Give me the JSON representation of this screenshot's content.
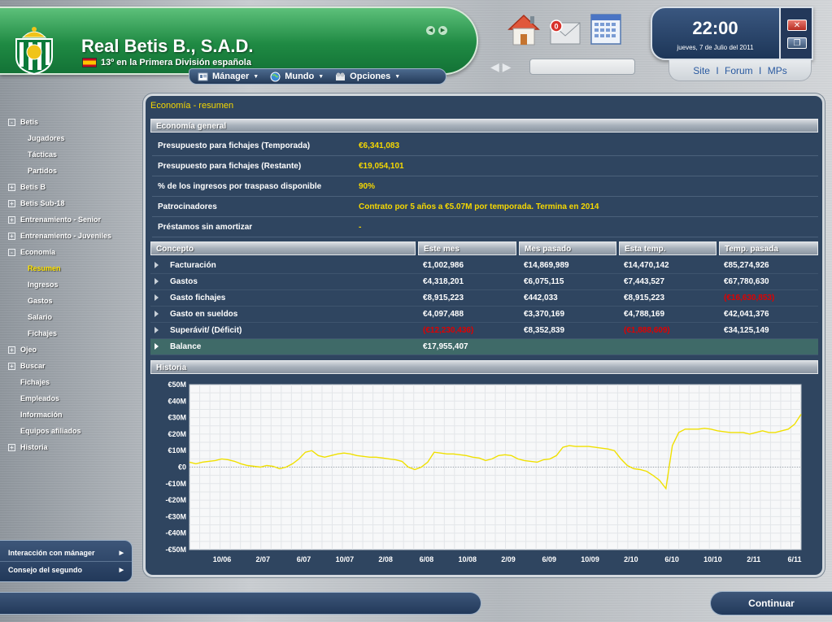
{
  "header": {
    "club_name": "Real Betis B., S.A.D.",
    "league_position": "13º en la Primera División española",
    "menu": [
      {
        "label": "Mánager",
        "icon": "manager-icon"
      },
      {
        "label": "Mundo",
        "icon": "globe-icon"
      },
      {
        "label": "Opciones",
        "icon": "options-icon"
      }
    ],
    "search": {
      "value": "",
      "placeholder": ""
    },
    "clock": {
      "time": "22:00",
      "date": "jueves, 7 de Julio del 2011"
    },
    "links": [
      "Site",
      "Forum",
      "MPs"
    ],
    "unread_messages": "0",
    "colors": {
      "banner_green": "#1f8a43",
      "panel_blue": "#2f4560",
      "accent_yellow": "#f6d800",
      "negative_red": "#e00000"
    }
  },
  "sidebar": {
    "items": [
      {
        "label": "Betis",
        "toggle": "-",
        "level": 1
      },
      {
        "label": "Jugadores",
        "level": 2
      },
      {
        "label": "Tácticas",
        "level": 2
      },
      {
        "label": "Partidos",
        "level": 2
      },
      {
        "label": "Betis B",
        "toggle": "+",
        "level": 1
      },
      {
        "label": "Betis Sub-18",
        "toggle": "+",
        "level": 1
      },
      {
        "label": "Entrenamiento - Senior",
        "toggle": "+",
        "level": 1
      },
      {
        "label": "Entrenamiento - Juveniles",
        "toggle": "+",
        "level": 1
      },
      {
        "label": "Economía",
        "toggle": "-",
        "level": 1
      },
      {
        "label": "Resumen",
        "level": 2,
        "active": true
      },
      {
        "label": "Ingresos",
        "level": 2
      },
      {
        "label": "Gastos",
        "level": 2
      },
      {
        "label": "Salario",
        "level": 2
      },
      {
        "label": "Fichajes",
        "level": 2
      },
      {
        "label": "Ojeo",
        "toggle": "+",
        "level": 1
      },
      {
        "label": "Buscar",
        "toggle": "+",
        "level": 1
      },
      {
        "label": "Fichajes",
        "level": 1
      },
      {
        "label": "Empleados",
        "level": 1
      },
      {
        "label": "Información",
        "level": 1
      },
      {
        "label": "Equipos afiliados",
        "level": 1
      },
      {
        "label": "Historia",
        "toggle": "+",
        "level": 1
      }
    ],
    "bottom": [
      "Interacción con mánager",
      "Consejo del segundo"
    ]
  },
  "main": {
    "title": "Economía - resumen",
    "general_header": "Economía general",
    "general": [
      {
        "label": "Presupuesto para fichajes (Temporada)",
        "value": "€6,341,083"
      },
      {
        "label": "Presupuesto para fichajes (Restante)",
        "value": "€19,054,101"
      },
      {
        "label": "% de los ingresos por traspaso disponible",
        "value": "90%"
      },
      {
        "label": "Patrocinadores",
        "value": "Contrato por 5 años a €5.07M por temporada. Termina en 2014"
      },
      {
        "label": "Préstamos sin amortizar",
        "value": "-"
      }
    ],
    "table": {
      "columns": [
        "Concepto",
        "Este mes",
        "Mes pasado",
        "Esta temp.",
        "Temp. pasada"
      ],
      "rows": [
        {
          "label": "Facturación",
          "cells": [
            "€1,002,986",
            "€14,869,989",
            "€14,470,142",
            "€85,274,926"
          ],
          "neg": [
            false,
            false,
            false,
            false
          ]
        },
        {
          "label": "Gastos",
          "cells": [
            "€4,318,201",
            "€6,075,115",
            "€7,443,527",
            "€67,780,630"
          ],
          "neg": [
            false,
            false,
            false,
            false
          ]
        },
        {
          "label": "Gasto fichajes",
          "cells": [
            "€8,915,223",
            "€442,033",
            "€8,915,223",
            "(€16,630,853)"
          ],
          "neg": [
            false,
            false,
            false,
            true
          ]
        },
        {
          "label": "Gasto en sueldos",
          "cells": [
            "€4,097,488",
            "€3,370,169",
            "€4,788,169",
            "€42,041,376"
          ],
          "neg": [
            false,
            false,
            false,
            false
          ]
        },
        {
          "label": "Superávit/ (Déficit)",
          "cells": [
            "(€12,230,436)",
            "€8,352,839",
            "(€1,888,609)",
            "€34,125,149"
          ],
          "neg": [
            true,
            false,
            true,
            false
          ]
        }
      ],
      "balance": {
        "label": "Balance",
        "value": "€17,955,407"
      }
    },
    "history_header": "Historia"
  },
  "chart_data": {
    "type": "line",
    "title": "Historia",
    "xlabel": "",
    "ylabel": "",
    "ylim": [
      -50,
      50
    ],
    "y_ticks": [
      "€50M",
      "€40M",
      "€30M",
      "€20M",
      "€10M",
      "€0",
      "-€10M",
      "-€20M",
      "-€30M",
      "-€40M",
      "-€50M"
    ],
    "x_ticks": [
      "10/06",
      "2/07",
      "6/07",
      "10/07",
      "2/08",
      "6/08",
      "10/08",
      "2/09",
      "6/09",
      "10/09",
      "2/10",
      "6/10",
      "10/10",
      "2/11",
      "6/11"
    ],
    "series": [
      {
        "color": "#f0e000",
        "values": [
          3,
          2,
          3,
          3.5,
          4,
          5,
          4.5,
          3.5,
          2,
          1,
          0.5,
          0,
          1,
          0.5,
          -1,
          0,
          2,
          5,
          9,
          10,
          7,
          6,
          7,
          8,
          8.5,
          8,
          7,
          6.5,
          6,
          6,
          5.5,
          5,
          4.5,
          3.5,
          0,
          -1.5,
          0,
          3,
          9,
          8.5,
          8,
          8,
          7.5,
          7,
          6,
          5.5,
          4,
          5,
          7,
          7.5,
          7,
          5,
          4,
          3.5,
          3,
          4.5,
          5,
          7,
          12,
          13,
          12.5,
          12.5,
          12.5,
          12,
          11.5,
          11,
          10,
          5,
          1,
          -1,
          -1.5,
          -2.5,
          -5,
          -8,
          -13,
          13,
          21,
          23,
          23,
          23,
          23.5,
          23,
          22,
          21.5,
          21,
          21,
          21,
          20,
          21,
          22,
          21,
          21,
          22,
          23,
          26,
          32
        ]
      }
    ],
    "baseline": 0,
    "grid": true
  },
  "footer": {
    "continue_label": "Continuar"
  }
}
